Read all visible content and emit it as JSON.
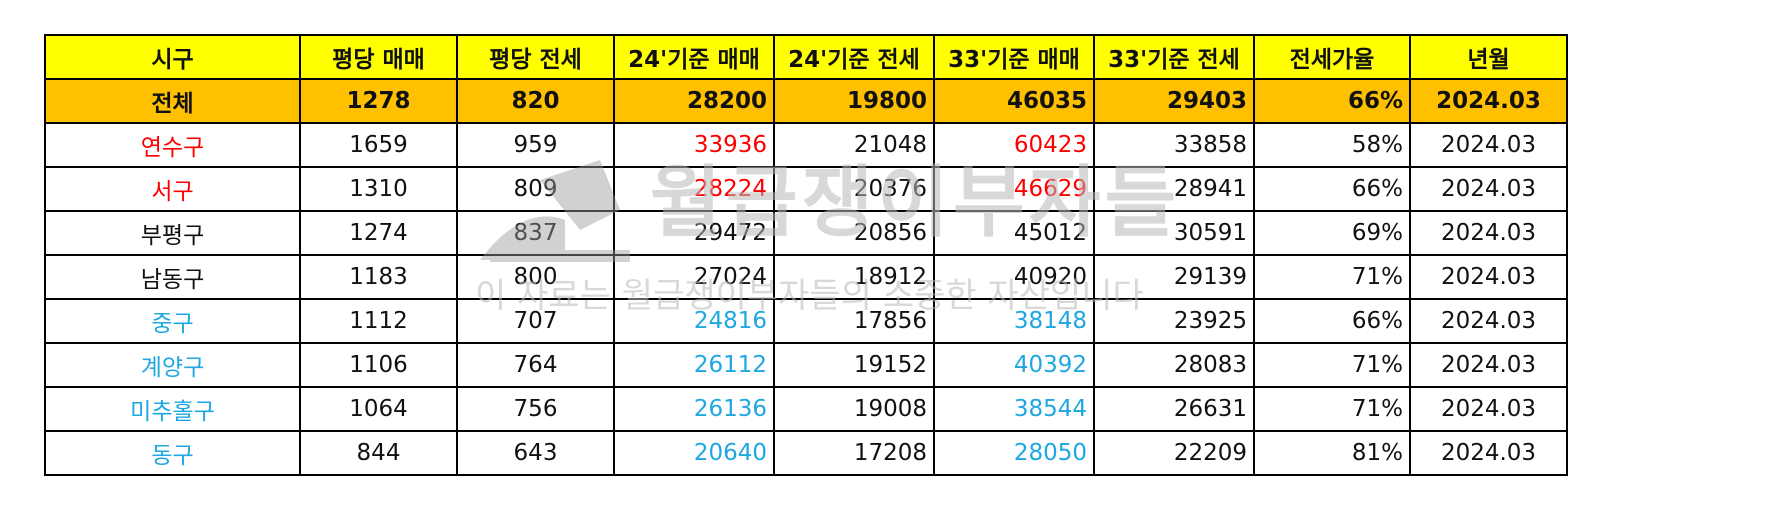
{
  "header": [
    "시구",
    "평당 매매",
    "평당 전세",
    "24'기준 매매",
    "24'기준 전세",
    "33'기준 매매",
    "33'기준 전세",
    "전세가율",
    "년월"
  ],
  "total": [
    "전체",
    "1278",
    "820",
    "28200",
    "19800",
    "46035",
    "29403",
    "66%",
    "2024.03"
  ],
  "rows": [
    [
      "연수구",
      "1659",
      "959",
      "33936",
      "21048",
      "60423",
      "33858",
      "58%",
      "2024.03"
    ],
    [
      "서구",
      "1310",
      "809",
      "28224",
      "20376",
      "46629",
      "28941",
      "66%",
      "2024.03"
    ],
    [
      "부평구",
      "1274",
      "837",
      "29472",
      "20856",
      "45012",
      "30591",
      "69%",
      "2024.03"
    ],
    [
      "남동구",
      "1183",
      "800",
      "27024",
      "18912",
      "40920",
      "29139",
      "71%",
      "2024.03"
    ],
    [
      "중구",
      "1112",
      "707",
      "24816",
      "17856",
      "38148",
      "23925",
      "66%",
      "2024.03"
    ],
    [
      "계양구",
      "1106",
      "764",
      "26112",
      "19152",
      "40392",
      "28083",
      "71%",
      "2024.03"
    ],
    [
      "미추홀구",
      "1064",
      "756",
      "26136",
      "19008",
      "38544",
      "26631",
      "71%",
      "2024.03"
    ],
    [
      "동구",
      "844",
      "643",
      "20640",
      "17208",
      "28050",
      "22209",
      "81%",
      "2024.03"
    ]
  ],
  "row_colors": [
    "red",
    "red",
    "black",
    "black",
    "blue",
    "blue",
    "blue",
    "blue"
  ],
  "colors": {
    "header_bg": "#ffff00",
    "total_bg": "#ffc000",
    "red": "#ff0000",
    "blue": "#1ea7e1"
  },
  "watermark": {
    "main": "월급쟁이부자들",
    "sub": "이 자료는 월급쟁이부자들의 소중한 자산입니다"
  }
}
